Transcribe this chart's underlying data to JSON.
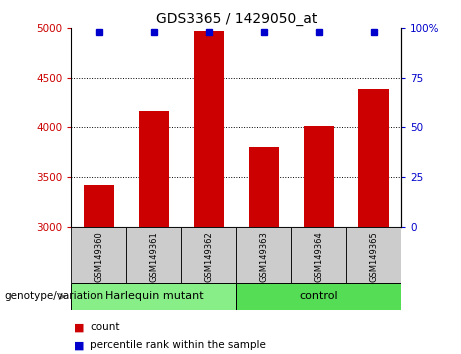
{
  "title": "GDS3365 / 1429050_at",
  "samples": [
    "GSM149360",
    "GSM149361",
    "GSM149362",
    "GSM149363",
    "GSM149364",
    "GSM149365"
  ],
  "counts": [
    3420,
    4170,
    4970,
    3800,
    4010,
    4390
  ],
  "percentile_ranks": [
    98,
    98,
    98,
    98,
    98,
    98
  ],
  "ylim_left": [
    3000,
    5000
  ],
  "ylim_right": [
    0,
    100
  ],
  "yticks_left": [
    3000,
    3500,
    4000,
    4500,
    5000
  ],
  "yticks_right": [
    0,
    25,
    50,
    75,
    100
  ],
  "bar_color": "#cc0000",
  "dot_color": "#0000cc",
  "bar_width": 0.55,
  "groups": [
    {
      "label": "Harlequin mutant",
      "indices": [
        0,
        1,
        2
      ],
      "color": "#88ee88"
    },
    {
      "label": "control",
      "indices": [
        3,
        4,
        5
      ],
      "color": "#55dd55"
    }
  ],
  "group_label": "genotype/variation",
  "legend_count_label": "count",
  "legend_pct_label": "percentile rank within the sample",
  "plot_bg_color": "#ffffff",
  "tick_area_color": "#cccccc",
  "left_tick_color": "#cc0000",
  "right_tick_color": "#0000cc",
  "grid_yticks": [
    3500,
    4000,
    4500
  ]
}
